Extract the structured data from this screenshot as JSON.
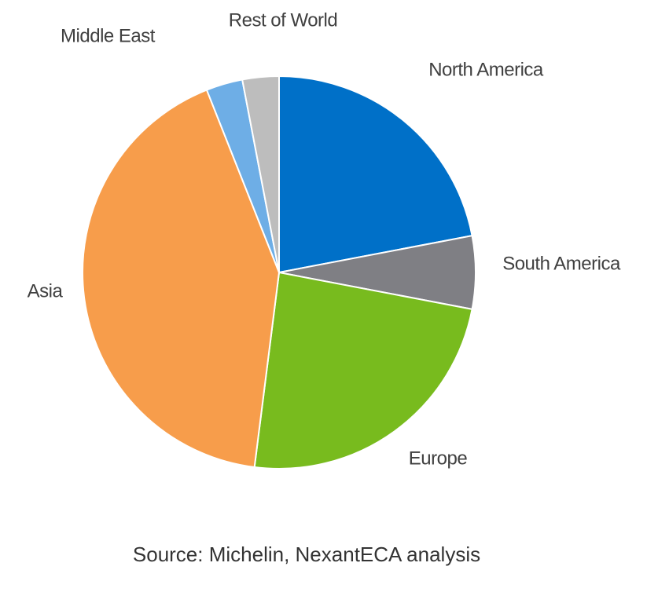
{
  "chart_data": {
    "type": "pie",
    "categories": [
      "North America",
      "South America",
      "Europe",
      "Asia",
      "Middle East",
      "Rest of World"
    ],
    "values": [
      22,
      6,
      24,
      42,
      3,
      3
    ],
    "colors": [
      "#0070c8",
      "#7f7f84",
      "#78bb1e",
      "#f79d4b",
      "#6eaee6",
      "#bdbdbd"
    ],
    "source": "Source: Michelin, NexantECA analysis"
  }
}
